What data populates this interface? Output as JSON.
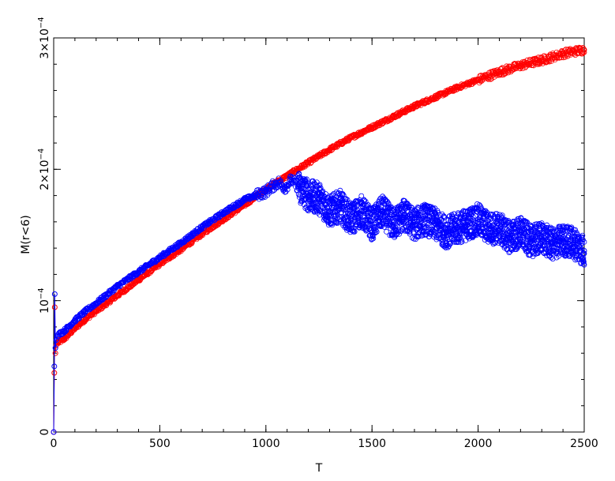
{
  "chart_data": {
    "type": "scatter",
    "xlabel": "T",
    "ylabel": "M(r<6)",
    "xlim": [
      0,
      2500
    ],
    "ylim": [
      0,
      0.0003
    ],
    "x_ticks": [
      {
        "value": 0,
        "label": "0"
      },
      {
        "value": 500,
        "label": "500"
      },
      {
        "value": 1000,
        "label": "1000"
      },
      {
        "value": 1500,
        "label": "1500"
      },
      {
        "value": 2000,
        "label": "2000"
      },
      {
        "value": 2500,
        "label": "2500"
      }
    ],
    "x_minor_step": 100,
    "y_ticks": [
      {
        "value": 0,
        "mant": "0",
        "exp": ""
      },
      {
        "value": 0.0001,
        "mant": "10",
        "exp": "−4"
      },
      {
        "value": 0.0002,
        "mant": "2×10",
        "exp": "−4"
      },
      {
        "value": 0.0003,
        "mant": "3×10",
        "exp": "−4"
      }
    ],
    "y_minor_step": 2e-05,
    "marker": "open-circle",
    "grid": false,
    "series": [
      {
        "color": "#ff0000",
        "points": [
          [
            0,
            0
          ],
          [
            3,
            4.5e-05
          ],
          [
            5,
            9.5e-05
          ],
          [
            8,
            6e-05
          ],
          [
            12,
            6.6e-05
          ],
          [
            20,
            6.8e-05
          ],
          [
            50,
            7.1e-05
          ],
          [
            100,
            7.9e-05
          ],
          [
            150,
            8.6e-05
          ],
          [
            200,
            9.2e-05
          ],
          [
            300,
            0.000104
          ],
          [
            400,
            0.000116
          ],
          [
            500,
            0.000128
          ],
          [
            600,
            0.000139
          ],
          [
            700,
            0.000151
          ],
          [
            800,
            0.000162
          ],
          [
            900,
            0.000173
          ],
          [
            1000,
            0.000185
          ],
          [
            1100,
            0.000195
          ],
          [
            1200,
            0.000205
          ],
          [
            1300,
            0.000215
          ],
          [
            1400,
            0.000224
          ],
          [
            1500,
            0.000232
          ],
          [
            1600,
            0.00024
          ],
          [
            1700,
            0.000248
          ],
          [
            1800,
            0.000255
          ],
          [
            1900,
            0.000262
          ],
          [
            2000,
            0.000268
          ],
          [
            2100,
            0.000274
          ],
          [
            2200,
            0.000279
          ],
          [
            2300,
            0.000283
          ],
          [
            2400,
            0.000288
          ],
          [
            2500,
            0.000291
          ]
        ]
      },
      {
        "color": "#0000ff",
        "points": [
          [
            0,
            0
          ],
          [
            3,
            5e-05
          ],
          [
            5,
            0.000105
          ],
          [
            8,
            6.4e-05
          ],
          [
            12,
            7e-05
          ],
          [
            20,
            7.4e-05
          ],
          [
            50,
            7.7e-05
          ],
          [
            100,
            8.5e-05
          ],
          [
            150,
            9.2e-05
          ],
          [
            200,
            9.8e-05
          ],
          [
            300,
            0.000111
          ],
          [
            400,
            0.000122
          ],
          [
            500,
            0.000133
          ],
          [
            600,
            0.000144
          ],
          [
            700,
            0.000156
          ],
          [
            800,
            0.000167
          ],
          [
            900,
            0.000177
          ],
          [
            950,
            0.00018
          ],
          [
            1000,
            0.000183
          ],
          [
            1030,
            0.000187
          ],
          [
            1060,
            0.00019
          ],
          [
            1090,
            0.000186
          ],
          [
            1120,
            0.000192
          ],
          [
            1150,
            0.000187
          ],
          [
            1200,
            0.00018
          ],
          [
            1250,
            0.000178
          ],
          [
            1300,
            0.000168
          ],
          [
            1350,
            0.000172
          ],
          [
            1400,
            0.000162
          ],
          [
            1450,
            0.000168
          ],
          [
            1500,
            0.000158
          ],
          [
            1550,
            0.000168
          ],
          [
            1600,
            0.000158
          ],
          [
            1650,
            0.000165
          ],
          [
            1700,
            0.000158
          ],
          [
            1750,
            0.000162
          ],
          [
            1800,
            0.000158
          ],
          [
            1850,
            0.000152
          ],
          [
            1900,
            0.000155
          ],
          [
            1950,
            0.000158
          ],
          [
            2000,
            0.000162
          ],
          [
            2050,
            0.000155
          ],
          [
            2100,
            0.000155
          ],
          [
            2150,
            0.000148
          ],
          [
            2200,
            0.000152
          ],
          [
            2250,
            0.000145
          ],
          [
            2300,
            0.000148
          ],
          [
            2350,
            0.000143
          ],
          [
            2400,
            0.000146
          ],
          [
            2450,
            0.000144
          ],
          [
            2500,
            0.000138
          ]
        ]
      }
    ]
  }
}
